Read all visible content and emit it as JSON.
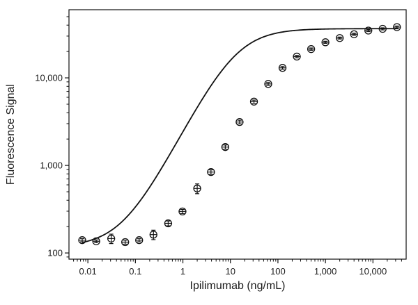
{
  "chart_data": {
    "type": "scatter",
    "xlabel": "Ipilimumab (ng/mL)",
    "ylabel": "Fluorescence Signal",
    "x_scale": "log",
    "y_scale": "log",
    "xlim": [
      0.004,
      50000
    ],
    "ylim": [
      85,
      60000
    ],
    "grid": false,
    "x_major_ticks": [
      {
        "value": 0.01,
        "label": "0.01"
      },
      {
        "value": 0.1,
        "label": "0.1"
      },
      {
        "value": 1,
        "label": "1"
      },
      {
        "value": 10,
        "label": "10"
      },
      {
        "value": 100,
        "label": "100"
      },
      {
        "value": 1000,
        "label": "1,000"
      },
      {
        "value": 10000,
        "label": "10,000"
      }
    ],
    "y_major_ticks": [
      {
        "value": 100,
        "label": "100"
      },
      {
        "value": 1000,
        "label": "1,000"
      },
      {
        "value": 10000,
        "label": "10,000"
      }
    ],
    "series": [
      {
        "style": "open-circle-with-error-bars",
        "x": [
          0.0076,
          0.015,
          0.031,
          0.061,
          0.12,
          0.24,
          0.49,
          0.98,
          2.0,
          3.9,
          7.8,
          15.6,
          31.3,
          62.5,
          125,
          250,
          500,
          1000,
          2000,
          4000,
          8000,
          16000,
          32000
        ],
        "y": [
          140,
          136,
          146,
          133,
          140,
          162,
          218,
          298,
          545,
          840,
          1620,
          3130,
          5350,
          8520,
          13000,
          17500,
          21300,
          25500,
          28500,
          31500,
          34700,
          36300,
          38000
        ],
        "err": [
          6,
          5,
          18,
          7,
          6,
          20,
          14,
          16,
          70,
          50,
          90,
          150,
          220,
          320,
          450,
          550,
          650,
          700,
          750,
          900,
          950,
          1000,
          1100
        ]
      },
      {
        "style": "fitted-curve",
        "fit": "4PL",
        "bottom": 117,
        "top": 36500,
        "ec50": 13,
        "hill": 1.05
      }
    ]
  }
}
